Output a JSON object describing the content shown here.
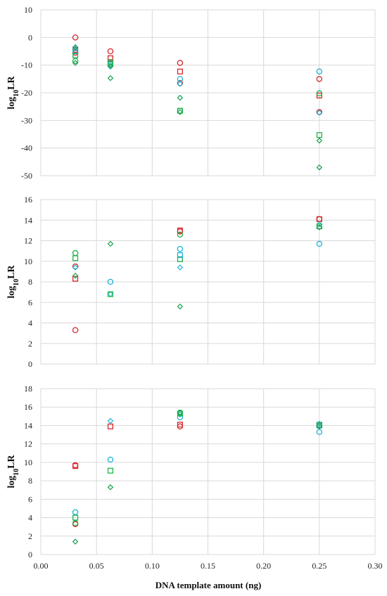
{
  "colors": {
    "red": "#d7262b",
    "cyan": "#1cb3d8",
    "green": "#22b24c",
    "darkgreen": "#15a04a",
    "grid": "#d9d9d9",
    "axis": "#c0c0c0"
  },
  "chart_data": [
    {
      "type": "scatter",
      "xlabel": "",
      "ylabel": "log10LR",
      "ylim": [
        -50,
        10
      ],
      "yticks": [
        10,
        0,
        -10,
        -20,
        -30,
        -40,
        -50
      ],
      "xlim": [
        0,
        0.3
      ],
      "grid": true,
      "series": [
        {
          "marker": "circle",
          "color": "red",
          "points": [
            [
              0.031,
              0
            ],
            [
              0.031,
              -5.5
            ],
            [
              0.0625,
              -5
            ],
            [
              0.125,
              -9.2
            ],
            [
              0.125,
              -16.5
            ],
            [
              0.25,
              -15
            ],
            [
              0.25,
              -27
            ]
          ]
        },
        {
          "marker": "square",
          "color": "red",
          "points": [
            [
              0.031,
              -4.5
            ],
            [
              0.0625,
              -7.5
            ],
            [
              0.125,
              -12.3
            ],
            [
              0.25,
              -21
            ]
          ]
        },
        {
          "marker": "circle",
          "color": "cyan",
          "points": [
            [
              0.031,
              -5
            ],
            [
              0.0625,
              -9.8
            ],
            [
              0.125,
              -15
            ],
            [
              0.25,
              -12.3
            ]
          ]
        },
        {
          "marker": "diamond",
          "color": "cyan",
          "points": [
            [
              0.031,
              -4
            ],
            [
              0.0625,
              -10.2
            ],
            [
              0.125,
              -16.8
            ],
            [
              0.25,
              -27.2
            ]
          ]
        },
        {
          "marker": "circle",
          "color": "green",
          "points": [
            [
              0.031,
              -8.5
            ],
            [
              0.0625,
              -8.8
            ],
            [
              0.125,
              -26.5
            ],
            [
              0.25,
              -20.2
            ]
          ]
        },
        {
          "marker": "square",
          "color": "green",
          "points": [
            [
              0.031,
              -6.5
            ],
            [
              0.0625,
              -9.5
            ],
            [
              0.125,
              -26.5
            ],
            [
              0.25,
              -35.3
            ]
          ]
        },
        {
          "marker": "diamond",
          "color": "darkgreen",
          "points": [
            [
              0.031,
              -3.5
            ],
            [
              0.031,
              -9.2
            ],
            [
              0.0625,
              -14.7
            ],
            [
              0.0625,
              -10.5
            ],
            [
              0.125,
              -21.8
            ],
            [
              0.125,
              -27
            ],
            [
              0.25,
              -37.3
            ],
            [
              0.25,
              -47
            ]
          ]
        }
      ]
    },
    {
      "type": "scatter",
      "xlabel": "",
      "ylabel": "log10LR",
      "ylim": [
        0,
        16
      ],
      "yticks": [
        16,
        14,
        12,
        10,
        8,
        6,
        4,
        2,
        0
      ],
      "xlim": [
        0,
        0.3
      ],
      "grid": true,
      "series": [
        {
          "marker": "circle",
          "color": "red",
          "points": [
            [
              0.031,
              9.5
            ],
            [
              0.031,
              3.3
            ],
            [
              0.125,
              12.9
            ],
            [
              0.25,
              14.1
            ]
          ]
        },
        {
          "marker": "square",
          "color": "red",
          "points": [
            [
              0.031,
              8.3
            ],
            [
              0.125,
              13
            ],
            [
              0.25,
              14.1
            ]
          ]
        },
        {
          "marker": "circle",
          "color": "cyan",
          "points": [
            [
              0.0625,
              8
            ],
            [
              0.125,
              11.2
            ],
            [
              0.25,
              11.7
            ]
          ]
        },
        {
          "marker": "diamond",
          "color": "cyan",
          "points": [
            [
              0.031,
              9.4
            ],
            [
              0.0625,
              6.8
            ],
            [
              0.125,
              9.4
            ],
            [
              0.25,
              13.6
            ]
          ]
        },
        {
          "marker": "circle",
          "color": "green",
          "points": [
            [
              0.031,
              10.8
            ],
            [
              0.125,
              12.6
            ]
          ]
        },
        {
          "marker": "square",
          "color": "green",
          "points": [
            [
              0.031,
              10.3
            ],
            [
              0.0625,
              6.8
            ],
            [
              0.125,
              10.2
            ],
            [
              0.25,
              13.4
            ]
          ]
        },
        {
          "marker": "square",
          "color": "cyan",
          "points": [
            [
              0.125,
              10.6
            ]
          ]
        },
        {
          "marker": "diamond",
          "color": "darkgreen",
          "points": [
            [
              0.031,
              8.6
            ],
            [
              0.0625,
              11.7
            ],
            [
              0.125,
              5.6
            ],
            [
              0.25,
              13.3
            ]
          ]
        }
      ]
    },
    {
      "type": "scatter",
      "xlabel": "DNA template amount (ng)",
      "ylabel": "log10LR",
      "ylim": [
        0,
        18
      ],
      "yticks": [
        18,
        16,
        14,
        12,
        10,
        8,
        6,
        4,
        2,
        0
      ],
      "xlim": [
        0,
        0.3
      ],
      "xticks": [
        "0.00",
        "0.05",
        "0.10",
        "0.15",
        "0.20",
        "0.25",
        "0.30"
      ],
      "grid": true,
      "series": [
        {
          "marker": "circle",
          "color": "red",
          "points": [
            [
              0.031,
              9.7
            ],
            [
              0.031,
              3.3
            ],
            [
              0.125,
              13.9
            ],
            [
              0.25,
              14
            ]
          ]
        },
        {
          "marker": "square",
          "color": "red",
          "points": [
            [
              0.031,
              9.6
            ],
            [
              0.0625,
              13.9
            ],
            [
              0.125,
              14.1
            ],
            [
              0.25,
              14
            ]
          ]
        },
        {
          "marker": "circle",
          "color": "cyan",
          "points": [
            [
              0.031,
              4.6
            ],
            [
              0.0625,
              10.3
            ],
            [
              0.125,
              14.9
            ],
            [
              0.25,
              13.3
            ]
          ]
        },
        {
          "marker": "diamond",
          "color": "cyan",
          "points": [
            [
              0.0625,
              14.5
            ],
            [
              0.125,
              15.2
            ],
            [
              0.25,
              14.2
            ]
          ]
        },
        {
          "marker": "square",
          "color": "cyan",
          "points": [
            [
              0.25,
              14.1
            ]
          ]
        },
        {
          "marker": "square",
          "color": "green",
          "points": [
            [
              0.031,
              4
            ],
            [
              0.0625,
              9.1
            ],
            [
              0.125,
              15.3
            ],
            [
              0.25,
              14
            ]
          ]
        },
        {
          "marker": "circle",
          "color": "green",
          "points": [
            [
              0.031,
              3.4
            ],
            [
              0.125,
              15.4
            ]
          ]
        },
        {
          "marker": "diamond",
          "color": "darkgreen",
          "points": [
            [
              0.031,
              1.4
            ],
            [
              0.0625,
              7.3
            ],
            [
              0.125,
              15.4
            ],
            [
              0.25,
              13.9
            ]
          ]
        }
      ]
    }
  ]
}
